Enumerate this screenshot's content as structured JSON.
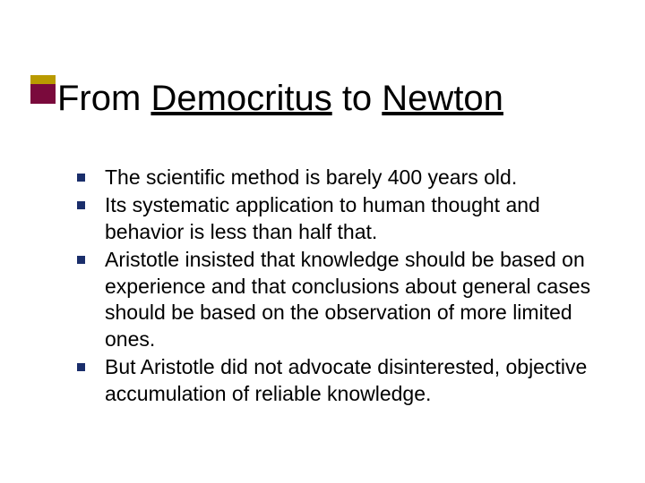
{
  "colors": {
    "accent_top": "#b99a00",
    "accent_bottom": "#7a0a3c",
    "bullet": "#1a2e6b",
    "title_text": "#000000",
    "body_text": "#000000",
    "background": "#ffffff"
  },
  "title": {
    "parts": [
      {
        "text": "From ",
        "underline": false
      },
      {
        "text": "Democritus",
        "underline": true
      },
      {
        "text": " to ",
        "underline": false
      },
      {
        "text": "Newton",
        "underline": true
      }
    ],
    "fontsize": 40,
    "font_weight": "400"
  },
  "bullets": {
    "fontsize": 23,
    "marker_size": 9,
    "items": [
      "The scientific method is barely 400 years old.",
      "Its systematic application to human thought and behavior is less than half that.",
      "Aristotle insisted that knowledge should be based on experience and that conclusions about general cases should be based on the observation of more limited ones.",
      "But Aristotle did not advocate disinterested, objective accumulation of reliable knowledge."
    ]
  }
}
